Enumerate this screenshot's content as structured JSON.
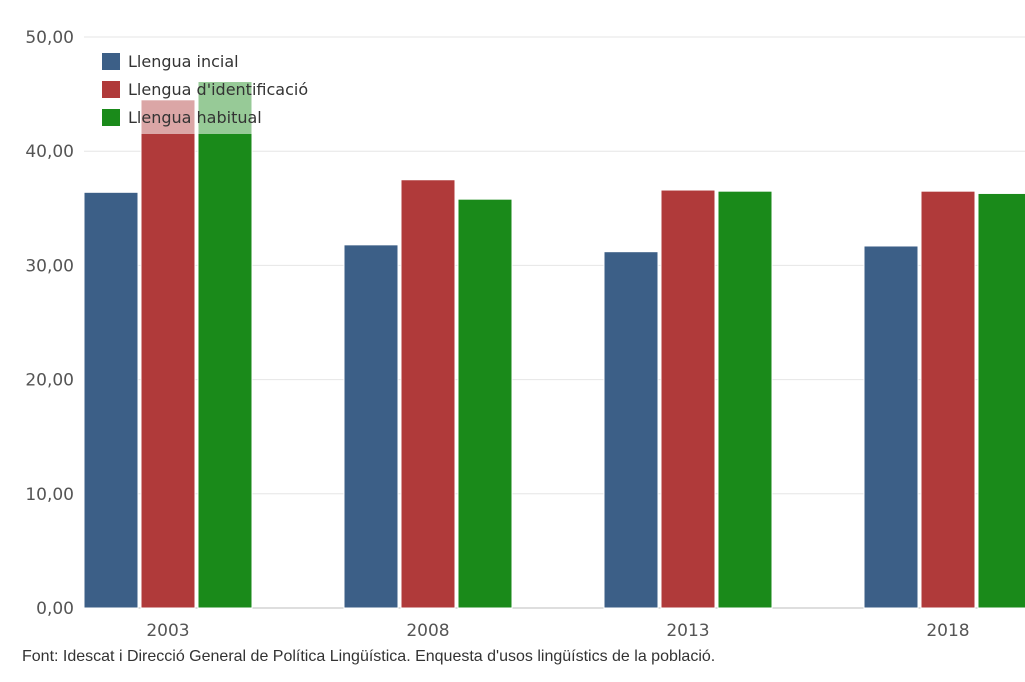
{
  "chart_data": {
    "type": "bar",
    "categories": [
      "2003",
      "2008",
      "2013",
      "2018"
    ],
    "series": [
      {
        "name": "Llengua incial",
        "values": [
          36.4,
          31.8,
          31.2,
          31.7
        ],
        "color": "#3c5f87"
      },
      {
        "name": "Llengua d'identificació",
        "values": [
          44.5,
          37.5,
          36.6,
          36.5
        ],
        "color": "#b03a3a"
      },
      {
        "name": "Llengua habitual",
        "values": [
          46.1,
          35.8,
          36.5,
          36.3
        ],
        "color": "#1a8a1a"
      }
    ],
    "y_ticks": [
      "0,00",
      "10,00",
      "20,00",
      "30,00",
      "40,00",
      "50,00"
    ],
    "ylim": [
      0,
      50
    ],
    "grid": true,
    "legend_position": "top-left"
  },
  "source_note": "Font: Idescat i Direcció General de Política Lingüística. Enquesta d'usos lingüístics de la població."
}
